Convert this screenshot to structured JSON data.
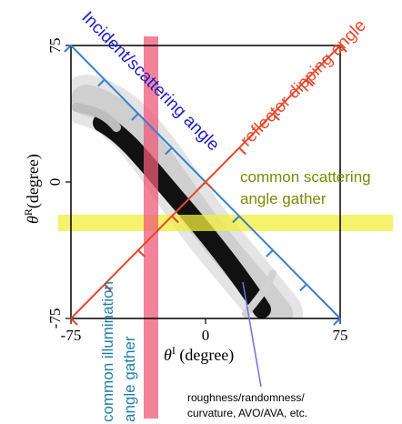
{
  "axes": {
    "x_symbol": "θ",
    "x_superscript": "I",
    "x_unit": " (degree)",
    "y_symbol": "θ",
    "y_superscript": "R",
    "y_unit": "(degree)",
    "x_ticks": [
      "-75",
      "0",
      "75"
    ],
    "y_ticks": [
      "75",
      "0",
      "-75"
    ]
  },
  "labels": {
    "incident_angle": "Incident/scattering angle",
    "reflector_angle": "reflector dipping angle",
    "scattering_gather_line1": "common scattering",
    "scattering_gather_line2": "angle gather",
    "illumination_gather_line1": "common illumination",
    "illumination_gather_line2": "angle gather",
    "annotation_line1": "roughness/randomness/",
    "annotation_line2": "curvature, AVO/AVA, etc."
  },
  "colors": {
    "incident_axis": "#3a7fd0",
    "incident_text": "#1c1cc8",
    "reflector_axis": "#e8462a",
    "reflector_text": "#e8462a",
    "scattering_band": "#f2ee3a",
    "scattering_text": "#7a8a00",
    "illumination_band": "#ee5a78",
    "illumination_text": "#1f7fa8",
    "annotation_line": "#6e6ee6"
  }
}
